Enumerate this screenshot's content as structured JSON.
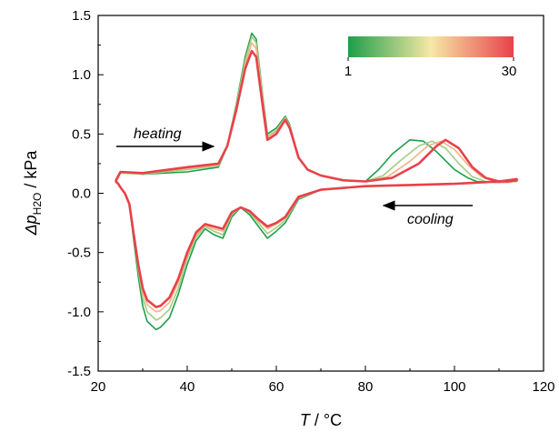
{
  "chart_data": {
    "type": "line",
    "xlabel": {
      "var": "T",
      "unit": " / °C"
    },
    "ylabel": {
      "var": "Δp",
      "sub": "H2O",
      "unit": " / kPa"
    },
    "xlim": [
      20,
      120
    ],
    "ylim": [
      -1.5,
      1.5
    ],
    "x_ticks": [
      20,
      40,
      60,
      80,
      100,
      120
    ],
    "y_ticks": [
      -1.5,
      -1.0,
      -0.5,
      0.0,
      0.5,
      1.0,
      1.5
    ],
    "x_tick_labels": [
      "20",
      "40",
      "60",
      "80",
      "100",
      "120"
    ],
    "y_tick_labels": [
      "-1.5",
      "-1.0",
      "-0.5",
      "0.0",
      "0.5",
      "1.0",
      "1.5"
    ],
    "grid": false,
    "colorbar": {
      "min_label": "1",
      "max_label": "30",
      "colors": [
        "#1e9e4a",
        "#f6e8a6",
        "#e8414a"
      ]
    },
    "annotations": [
      {
        "text": "heating",
        "x": 38,
        "y": 0.5
      },
      {
        "text": "cooling",
        "x": 101,
        "y": -0.23
      }
    ],
    "series": [
      {
        "cycle": 1,
        "heating": {
          "x": [
            24,
            25,
            30,
            40,
            47,
            49,
            51,
            53,
            54.5,
            55.5,
            57,
            58,
            60,
            62,
            63,
            65,
            67,
            70,
            75,
            80,
            83,
            86,
            90,
            93,
            96,
            100,
            103,
            105,
            110,
            114
          ],
          "y": [
            0.1,
            0.18,
            0.16,
            0.18,
            0.22,
            0.4,
            0.75,
            1.15,
            1.35,
            1.3,
            0.8,
            0.5,
            0.55,
            0.65,
            0.58,
            0.3,
            0.2,
            0.15,
            0.11,
            0.1,
            0.2,
            0.33,
            0.45,
            0.44,
            0.35,
            0.2,
            0.13,
            0.1,
            0.09,
            0.1
          ]
        },
        "cooling": {
          "x": [
            114,
            110,
            100,
            90,
            80,
            70,
            65,
            62,
            60,
            58,
            56,
            54,
            52,
            50,
            48,
            46,
            44,
            42,
            40,
            38,
            36,
            34,
            33,
            31,
            30,
            29,
            28,
            27,
            26,
            25,
            24.5,
            24
          ],
          "y": [
            0.12,
            0.1,
            0.08,
            0.07,
            0.06,
            0.03,
            -0.05,
            -0.25,
            -0.32,
            -0.38,
            -0.28,
            -0.18,
            -0.12,
            -0.2,
            -0.38,
            -0.35,
            -0.3,
            -0.4,
            -0.6,
            -0.85,
            -1.05,
            -1.13,
            -1.15,
            -1.08,
            -0.95,
            -0.7,
            -0.4,
            -0.1,
            0.0,
            0.05,
            0.08,
            0.1
          ]
        }
      },
      {
        "cycle": 10,
        "heating": {
          "x": [
            24,
            25,
            30,
            40,
            47,
            49,
            51,
            53,
            54.5,
            55.5,
            57,
            58,
            60,
            62,
            63,
            65,
            67,
            70,
            75,
            80,
            84,
            88,
            92,
            95,
            98,
            101,
            104,
            107,
            110,
            114
          ],
          "y": [
            0.09,
            0.17,
            0.16,
            0.2,
            0.23,
            0.4,
            0.74,
            1.12,
            1.32,
            1.27,
            0.78,
            0.48,
            0.53,
            0.64,
            0.57,
            0.3,
            0.2,
            0.15,
            0.11,
            0.1,
            0.15,
            0.28,
            0.4,
            0.44,
            0.38,
            0.25,
            0.14,
            0.1,
            0.09,
            0.1
          ]
        },
        "cooling": {
          "x": [
            114,
            110,
            100,
            90,
            80,
            70,
            65,
            62,
            60,
            58,
            56,
            54,
            52,
            50,
            48,
            46,
            44,
            42,
            40,
            38,
            36,
            34,
            33,
            31,
            30,
            29,
            28,
            27,
            26,
            25,
            24.5,
            24
          ],
          "y": [
            0.12,
            0.1,
            0.08,
            0.07,
            0.06,
            0.03,
            -0.04,
            -0.23,
            -0.29,
            -0.34,
            -0.25,
            -0.16,
            -0.12,
            -0.18,
            -0.35,
            -0.32,
            -0.28,
            -0.37,
            -0.55,
            -0.8,
            -0.98,
            -1.05,
            -1.07,
            -1.0,
            -0.88,
            -0.65,
            -0.37,
            -0.1,
            0.0,
            0.05,
            0.08,
            0.09
          ]
        }
      },
      {
        "cycle": 20,
        "heating": {
          "x": [
            24,
            25,
            30,
            40,
            47,
            49,
            51,
            53,
            54.5,
            55.5,
            57,
            58,
            60,
            62,
            63,
            65,
            67,
            70,
            75,
            80,
            85,
            90,
            94,
            97,
            100,
            103,
            106,
            109,
            112,
            114
          ],
          "y": [
            0.1,
            0.18,
            0.17,
            0.21,
            0.24,
            0.4,
            0.72,
            1.08,
            1.27,
            1.22,
            0.76,
            0.47,
            0.52,
            0.63,
            0.57,
            0.3,
            0.2,
            0.15,
            0.11,
            0.1,
            0.14,
            0.27,
            0.4,
            0.44,
            0.37,
            0.24,
            0.14,
            0.1,
            0.09,
            0.11
          ]
        },
        "cooling": {
          "x": [
            114,
            110,
            100,
            90,
            80,
            70,
            65,
            62,
            60,
            58,
            56,
            54,
            52,
            50,
            48,
            46,
            44,
            42,
            40,
            38,
            36,
            34,
            33,
            31,
            30,
            29,
            28,
            27,
            26,
            25,
            24.5,
            24
          ],
          "y": [
            0.12,
            0.1,
            0.08,
            0.07,
            0.06,
            0.03,
            -0.04,
            -0.21,
            -0.26,
            -0.3,
            -0.23,
            -0.15,
            -0.12,
            -0.17,
            -0.32,
            -0.3,
            -0.27,
            -0.35,
            -0.52,
            -0.75,
            -0.92,
            -0.99,
            -1.0,
            -0.94,
            -0.83,
            -0.62,
            -0.35,
            -0.09,
            0.0,
            0.05,
            0.08,
            0.09
          ]
        }
      },
      {
        "cycle": 30,
        "heating": {
          "x": [
            24,
            25,
            30,
            40,
            47,
            49,
            51,
            53,
            54.5,
            55.5,
            57,
            58,
            60,
            62,
            63,
            65,
            67,
            70,
            75,
            80,
            86,
            92,
            96,
            98,
            101,
            104,
            107,
            110,
            112,
            114
          ],
          "y": [
            0.11,
            0.18,
            0.17,
            0.22,
            0.25,
            0.4,
            0.7,
            1.05,
            1.2,
            1.15,
            0.72,
            0.45,
            0.5,
            0.62,
            0.55,
            0.3,
            0.2,
            0.15,
            0.11,
            0.1,
            0.13,
            0.25,
            0.4,
            0.45,
            0.38,
            0.22,
            0.13,
            0.1,
            0.1,
            0.11
          ]
        },
        "cooling": {
          "x": [
            114,
            110,
            100,
            90,
            80,
            70,
            65,
            62,
            60,
            58,
            56,
            54,
            52,
            50,
            48,
            46,
            44,
            42,
            40,
            38,
            36,
            34,
            33,
            31,
            30,
            29,
            28,
            27,
            26,
            25,
            24.5,
            24
          ],
          "y": [
            0.12,
            0.1,
            0.08,
            0.07,
            0.06,
            0.03,
            -0.03,
            -0.2,
            -0.25,
            -0.28,
            -0.22,
            -0.15,
            -0.12,
            -0.16,
            -0.3,
            -0.28,
            -0.26,
            -0.33,
            -0.5,
            -0.72,
            -0.88,
            -0.95,
            -0.96,
            -0.9,
            -0.8,
            -0.6,
            -0.35,
            -0.09,
            0.0,
            0.05,
            0.08,
            0.1
          ]
        }
      }
    ]
  }
}
